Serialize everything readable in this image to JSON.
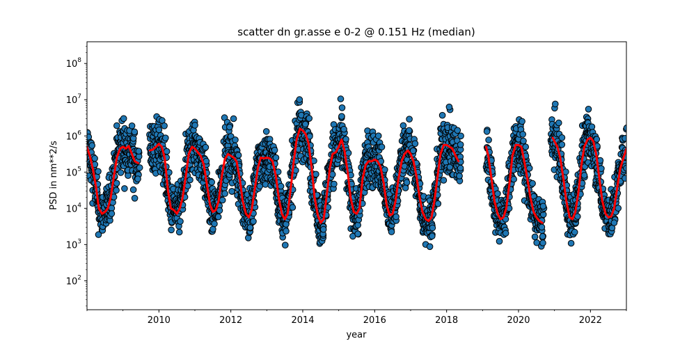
{
  "chart_data": {
    "type": "scatter",
    "title": "scatter dn gr.asse e 0-2 @ 0.151 Hz (median)",
    "xlabel": "year",
    "ylabel": "PSD in nm**2/s",
    "xlim": [
      2008.0,
      2023.0
    ],
    "ylim_log10": [
      1.2,
      8.6
    ],
    "yscale": "log",
    "x_ticks": [
      2010,
      2012,
      2014,
      2016,
      2018,
      2020,
      2022
    ],
    "y_ticks": [
      {
        "base": "10",
        "exp": "2"
      },
      {
        "base": "10",
        "exp": "3"
      },
      {
        "base": "10",
        "exp": "4"
      },
      {
        "base": "10",
        "exp": "5"
      },
      {
        "base": "10",
        "exp": "6"
      },
      {
        "base": "10",
        "exp": "7"
      },
      {
        "base": "10",
        "exp": "8"
      }
    ],
    "gaps": [
      [
        2009.45,
        2009.75
      ],
      [
        2018.4,
        2019.1
      ],
      [
        2020.7,
        2020.9
      ]
    ],
    "series": [
      {
        "kind": "scatter",
        "color": "#1f77b4",
        "edge_color": "#000000",
        "description_points": "dense daily PSD values, seasonal cycle",
        "envelope_log10": {
          "summer_low": 3.0,
          "summer_high": 4.5,
          "winter_low": 4.5,
          "winter_high": 6.9
        }
      },
      {
        "kind": "line",
        "color": "#ff0000",
        "points": [
          [
            2008.0,
            5.7
          ],
          [
            2008.08,
            5.45
          ],
          [
            2008.16,
            5.1
          ],
          [
            2008.25,
            4.6
          ],
          [
            2008.33,
            4.0
          ],
          [
            2008.42,
            3.85
          ],
          [
            2008.5,
            3.9
          ],
          [
            2008.58,
            4.0
          ],
          [
            2008.66,
            4.3
          ],
          [
            2008.75,
            4.9
          ],
          [
            2008.83,
            5.4
          ],
          [
            2008.92,
            5.65
          ],
          [
            2009.0,
            5.7
          ],
          [
            2009.08,
            5.65
          ],
          [
            2009.16,
            5.72
          ],
          [
            2009.25,
            5.5
          ],
          [
            2009.33,
            5.3
          ],
          [
            2009.42,
            5.25
          ],
          [
            2009.75,
            5.6
          ],
          [
            2009.83,
            5.62
          ],
          [
            2009.92,
            5.7
          ],
          [
            2010.0,
            5.78
          ],
          [
            2010.08,
            5.7
          ],
          [
            2010.16,
            5.4
          ],
          [
            2010.25,
            4.5
          ],
          [
            2010.33,
            4.0
          ],
          [
            2010.42,
            3.95
          ],
          [
            2010.5,
            3.85
          ],
          [
            2010.58,
            4.0
          ],
          [
            2010.66,
            4.3
          ],
          [
            2010.75,
            4.9
          ],
          [
            2010.83,
            5.5
          ],
          [
            2010.92,
            5.7
          ],
          [
            2011.0,
            5.65
          ],
          [
            2011.08,
            5.55
          ],
          [
            2011.16,
            5.45
          ],
          [
            2011.25,
            5.2
          ],
          [
            2011.33,
            4.7
          ],
          [
            2011.42,
            4.1
          ],
          [
            2011.5,
            3.9
          ],
          [
            2011.58,
            3.95
          ],
          [
            2011.66,
            4.2
          ],
          [
            2011.75,
            4.9
          ],
          [
            2011.83,
            5.35
          ],
          [
            2011.92,
            5.5
          ],
          [
            2012.0,
            5.45
          ],
          [
            2012.08,
            5.4
          ],
          [
            2012.16,
            5.3
          ],
          [
            2012.25,
            4.8
          ],
          [
            2012.33,
            4.2
          ],
          [
            2012.42,
            3.85
          ],
          [
            2012.5,
            3.75
          ],
          [
            2012.58,
            3.95
          ],
          [
            2012.66,
            4.5
          ],
          [
            2012.75,
            5.1
          ],
          [
            2012.83,
            5.4
          ],
          [
            2012.92,
            5.38
          ],
          [
            2013.0,
            5.4
          ],
          [
            2013.08,
            5.38
          ],
          [
            2013.16,
            5.3
          ],
          [
            2013.25,
            4.9
          ],
          [
            2013.33,
            4.3
          ],
          [
            2013.42,
            3.85
          ],
          [
            2013.5,
            3.7
          ],
          [
            2013.58,
            3.85
          ],
          [
            2013.66,
            4.5
          ],
          [
            2013.75,
            5.3
          ],
          [
            2013.83,
            5.9
          ],
          [
            2013.92,
            6.2
          ],
          [
            2014.0,
            6.15
          ],
          [
            2014.08,
            6.05
          ],
          [
            2014.16,
            5.8
          ],
          [
            2014.25,
            5.1
          ],
          [
            2014.33,
            4.3
          ],
          [
            2014.42,
            3.8
          ],
          [
            2014.5,
            3.6
          ],
          [
            2014.58,
            3.7
          ],
          [
            2014.66,
            4.3
          ],
          [
            2014.75,
            5.1
          ],
          [
            2014.83,
            5.5
          ],
          [
            2014.92,
            5.55
          ],
          [
            2015.0,
            5.7
          ],
          [
            2015.08,
            5.9
          ],
          [
            2015.16,
            5.6
          ],
          [
            2015.25,
            5.0
          ],
          [
            2015.33,
            4.3
          ],
          [
            2015.42,
            3.9
          ],
          [
            2015.5,
            3.85
          ],
          [
            2015.58,
            4.0
          ],
          [
            2015.66,
            4.8
          ],
          [
            2015.75,
            5.2
          ],
          [
            2015.83,
            5.3
          ],
          [
            2015.92,
            5.3
          ],
          [
            2016.0,
            5.35
          ],
          [
            2016.08,
            5.3
          ],
          [
            2016.16,
            5.15
          ],
          [
            2016.25,
            4.7
          ],
          [
            2016.33,
            4.1
          ],
          [
            2016.42,
            3.8
          ],
          [
            2016.5,
            3.85
          ],
          [
            2016.58,
            4.2
          ],
          [
            2016.66,
            4.8
          ],
          [
            2016.75,
            5.3
          ],
          [
            2016.83,
            5.5
          ],
          [
            2016.92,
            5.6
          ],
          [
            2017.0,
            5.5
          ],
          [
            2017.08,
            5.3
          ],
          [
            2017.16,
            4.9
          ],
          [
            2017.25,
            4.3
          ],
          [
            2017.33,
            3.9
          ],
          [
            2017.42,
            3.7
          ],
          [
            2017.5,
            3.65
          ],
          [
            2017.58,
            3.75
          ],
          [
            2017.66,
            4.2
          ],
          [
            2017.75,
            4.9
          ],
          [
            2017.83,
            5.5
          ],
          [
            2017.92,
            5.75
          ],
          [
            2018.0,
            5.75
          ],
          [
            2018.08,
            5.7
          ],
          [
            2018.16,
            5.65
          ],
          [
            2018.25,
            5.45
          ],
          [
            2018.33,
            5.3
          ],
          [
            2019.1,
            5.7
          ],
          [
            2019.16,
            5.45
          ],
          [
            2019.25,
            4.8
          ],
          [
            2019.33,
            4.2
          ],
          [
            2019.42,
            3.85
          ],
          [
            2019.5,
            3.7
          ],
          [
            2019.58,
            3.75
          ],
          [
            2019.66,
            4.0
          ],
          [
            2019.75,
            4.7
          ],
          [
            2019.83,
            5.45
          ],
          [
            2019.92,
            5.75
          ],
          [
            2020.0,
            5.75
          ],
          [
            2020.08,
            5.7
          ],
          [
            2020.16,
            5.3
          ],
          [
            2020.25,
            4.8
          ],
          [
            2020.33,
            4.3
          ],
          [
            2020.42,
            3.9
          ],
          [
            2020.5,
            3.75
          ],
          [
            2020.58,
            3.65
          ],
          [
            2020.66,
            3.6
          ],
          [
            2020.95,
            5.95
          ],
          [
            2021.0,
            5.85
          ],
          [
            2021.08,
            5.7
          ],
          [
            2021.16,
            5.4
          ],
          [
            2021.25,
            4.8
          ],
          [
            2021.33,
            4.2
          ],
          [
            2021.42,
            3.75
          ],
          [
            2021.5,
            3.7
          ],
          [
            2021.58,
            3.9
          ],
          [
            2021.66,
            4.4
          ],
          [
            2021.75,
            5.2
          ],
          [
            2021.83,
            5.7
          ],
          [
            2021.92,
            5.9
          ],
          [
            2022.0,
            5.95
          ],
          [
            2022.08,
            5.85
          ],
          [
            2022.16,
            5.5
          ],
          [
            2022.25,
            4.8
          ],
          [
            2022.33,
            4.2
          ],
          [
            2022.42,
            3.85
          ],
          [
            2022.5,
            3.75
          ],
          [
            2022.58,
            3.78
          ],
          [
            2022.66,
            4.0
          ],
          [
            2022.75,
            4.6
          ],
          [
            2022.83,
            5.1
          ],
          [
            2022.92,
            5.4
          ],
          [
            2023.0,
            5.65
          ]
        ]
      }
    ],
    "grid": false,
    "legend": "none"
  }
}
